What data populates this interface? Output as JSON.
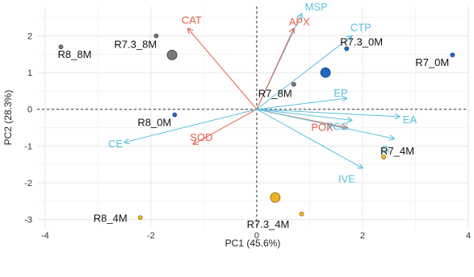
{
  "chart_data": {
    "type": "scatter",
    "subtype": "pca-biplot",
    "title": "",
    "xlabel": "PC1 (45.6%)",
    "ylabel": "PC2 (28.3%)",
    "xlim": [
      -4.15,
      4.0
    ],
    "ylim": [
      -3.25,
      2.8
    ],
    "xticks": [
      -4,
      -2,
      0,
      2,
      4
    ],
    "yticks": [
      -3,
      -2,
      -1,
      0,
      1,
      2
    ],
    "grid": true,
    "reference_lines": {
      "x": 0,
      "y": 0,
      "style": "dashed"
    },
    "samples": [
      {
        "name": "R8_8M",
        "x": -3.7,
        "y": 1.7,
        "color": "#7a7a7a",
        "size": 2
      },
      {
        "name": "R7.3_8M",
        "x": -1.9,
        "y": 2.0,
        "color": "#7a7a7a",
        "size": 2
      },
      {
        "name": "R7.3_0M",
        "x": 1.7,
        "y": 1.65,
        "color": "#2166c4",
        "size": 2
      },
      {
        "name": "R7_0M",
        "x": 3.7,
        "y": 1.48,
        "color": "#2166c4",
        "size": 2
      },
      {
        "name": "R7_8M",
        "x": 0.7,
        "y": 0.68,
        "color": "#7a7a7a",
        "size": 2
      },
      {
        "name": "R8_0M",
        "x": -1.55,
        "y": -0.15,
        "color": "#2166c4",
        "size": 2
      },
      {
        "name": "R7_4M",
        "x": 2.4,
        "y": -1.3,
        "color": "#f0b323",
        "size": 2
      },
      {
        "name": "R8_4M",
        "x": -2.2,
        "y": -2.95,
        "color": "#f0b323",
        "size": 2
      },
      {
        "name": "R7.3_4M",
        "x": 0.85,
        "y": -2.85,
        "color": "#f0b323",
        "size": 2
      }
    ],
    "centroids": [
      {
        "x": -1.6,
        "y": 1.48,
        "color": "#7a7a7a"
      },
      {
        "x": 1.3,
        "y": 1.0,
        "color": "#2166c4"
      },
      {
        "x": 0.35,
        "y": -2.4,
        "color": "#f0b323"
      }
    ],
    "variables": [
      {
        "name": "MSP",
        "x": 0.85,
        "y": 2.6,
        "color": "#5bc0de"
      },
      {
        "name": "APX",
        "x": 0.7,
        "y": 2.2,
        "color": "#e8604c"
      },
      {
        "name": "CAT",
        "x": -1.3,
        "y": 2.2,
        "color": "#e8604c"
      },
      {
        "name": "CTP",
        "x": 1.8,
        "y": 2.0,
        "color": "#5bc0de"
      },
      {
        "name": "EP",
        "x": 1.7,
        "y": 0.3,
        "color": "#5bc0de"
      },
      {
        "name": "EA",
        "x": 2.7,
        "y": -0.2,
        "color": "#5bc0de"
      },
      {
        "name": "PCG",
        "x": 1.8,
        "y": -0.3,
        "color": "#5bc0de"
      },
      {
        "name": "POX",
        "x": 1.7,
        "y": -0.5,
        "color": "#e8604c"
      },
      {
        "name": "G",
        "x": 2.6,
        "y": -0.8,
        "color": "#5bc0de"
      },
      {
        "name": "IVE",
        "x": 2.0,
        "y": -1.6,
        "color": "#5bc0de"
      },
      {
        "name": "SOD",
        "x": -1.2,
        "y": -0.95,
        "color": "#e8604c"
      },
      {
        "name": "CE",
        "x": -2.5,
        "y": -0.9,
        "color": "#5bc0de"
      }
    ]
  }
}
